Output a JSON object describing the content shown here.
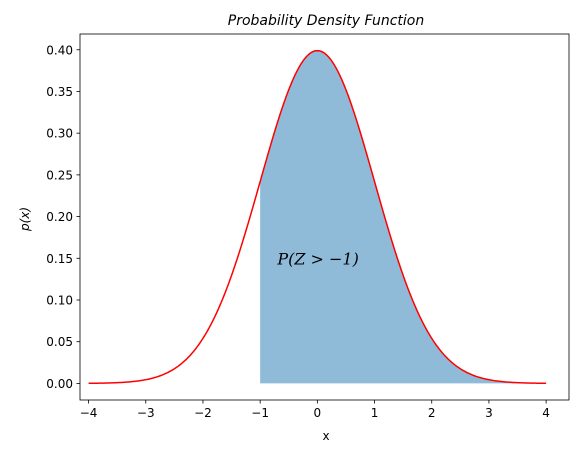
{
  "chart_data": {
    "type": "area",
    "title": "Probability Density Function",
    "xlabel": "x",
    "ylabel": "p(x)",
    "xlim": [
      -4.15,
      4.4
    ],
    "ylim": [
      -0.0199,
      0.4189
    ],
    "x_ticks": [
      -4,
      -3,
      -2,
      -1,
      0,
      1,
      2,
      3,
      4
    ],
    "x_tick_labels": [
      "−4",
      "−3",
      "−2",
      "−1",
      "0",
      "1",
      "2",
      "3",
      "4"
    ],
    "y_ticks": [
      0.0,
      0.05,
      0.1,
      0.15,
      0.2,
      0.25,
      0.3,
      0.35,
      0.4
    ],
    "y_tick_labels": [
      "0.00",
      "0.05",
      "0.10",
      "0.15",
      "0.20",
      "0.25",
      "0.30",
      "0.35",
      "0.40"
    ],
    "grid": false,
    "series": [
      {
        "kind": "line",
        "distribution": "standard normal",
        "mean": 0,
        "std": 1,
        "x_range": [
          -4,
          4
        ],
        "color": "#ff0000"
      },
      {
        "kind": "filled_area",
        "distribution": "standard normal",
        "x_range": [
          -1,
          4
        ],
        "color": "#1f77b4",
        "alpha": 0.5
      }
    ],
    "annotation": {
      "text_parts": [
        "P(Z > ",
        "−",
        "1)"
      ],
      "x": -0.7,
      "y": 0.15
    },
    "colors": {
      "curve": "#ff0000",
      "fill": "#8fbbd9",
      "axes": "#000000"
    }
  }
}
